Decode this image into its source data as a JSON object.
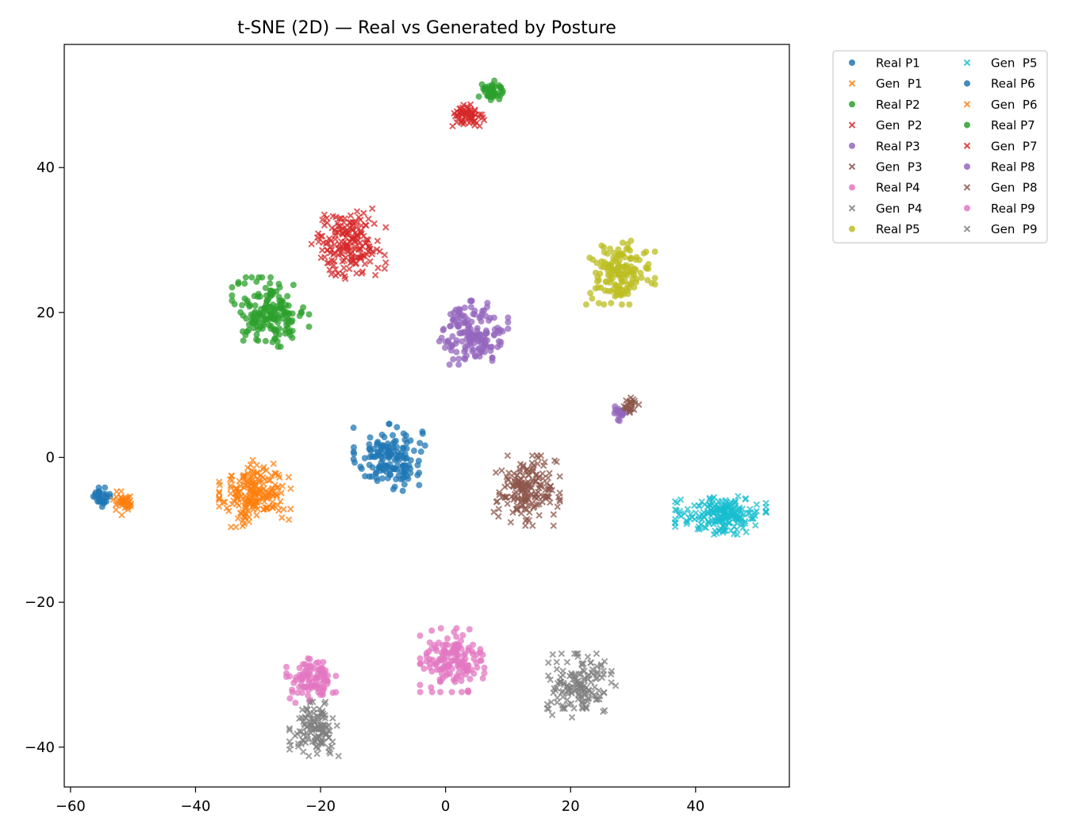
{
  "chart_data": {
    "type": "scatter",
    "title": "t-SNE (2D) — Real vs Generated by Posture",
    "xlabel": "",
    "ylabel": "",
    "xlim": [
      -61,
      55
    ],
    "ylim": [
      -45.5,
      57
    ],
    "xticks": [
      {
        "value": -60,
        "label": "−60"
      },
      {
        "value": -40,
        "label": "−40"
      },
      {
        "value": -20,
        "label": "−20"
      },
      {
        "value": 0,
        "label": "0"
      },
      {
        "value": 20,
        "label": "20"
      },
      {
        "value": 40,
        "label": "40"
      }
    ],
    "yticks": [
      {
        "value": -40,
        "label": "−40"
      },
      {
        "value": -20,
        "label": "−20"
      },
      {
        "value": 0,
        "label": "0"
      },
      {
        "value": 20,
        "label": "20"
      },
      {
        "value": 40,
        "label": "40"
      }
    ],
    "grid": false,
    "legend_position": "outside-top-right",
    "legend_columns": 2,
    "series": [
      {
        "name": "Real P1",
        "marker": "circle",
        "color": "#1f77b4",
        "center": [
          -9,
          0
        ],
        "spread": [
          2.6,
          2.1
        ],
        "n": 150
      },
      {
        "name": "Gen  P1",
        "marker": "x",
        "color": "#ff7f0e",
        "center": [
          -30.5,
          -5
        ],
        "spread": [
          2.6,
          2.1
        ],
        "n": 200
      },
      {
        "name": "Real P2",
        "marker": "circle",
        "color": "#2ca02c",
        "center": [
          -28,
          20
        ],
        "spread": [
          2.8,
          2.2
        ],
        "n": 170
      },
      {
        "name": "Gen  P2",
        "marker": "x",
        "color": "#d62728",
        "center": [
          -15.5,
          29.5
        ],
        "spread": [
          2.7,
          2.2
        ],
        "n": 180
      },
      {
        "name": "Real P3",
        "marker": "circle",
        "color": "#9467bd",
        "center": [
          4.5,
          17.2
        ],
        "spread": [
          2.5,
          2.0
        ],
        "n": 160
      },
      {
        "name": "Gen  P3",
        "marker": "x",
        "color": "#8c564b",
        "center": [
          13,
          -4.6
        ],
        "spread": [
          2.4,
          2.2
        ],
        "n": 180
      },
      {
        "name": "Real P4",
        "marker": "circle",
        "color": "#e377c2",
        "center": [
          1.2,
          -28
        ],
        "spread": [
          2.4,
          2.0
        ],
        "n": 150
      },
      {
        "name": "Gen  P4",
        "marker": "x",
        "color": "#7f7f7f",
        "center": [
          21.5,
          -31.5
        ],
        "spread": [
          2.6,
          2.0
        ],
        "n": 150
      },
      {
        "name": "Real P5",
        "marker": "circle",
        "color": "#bcbd22",
        "center": [
          28,
          25.5
        ],
        "spread": [
          2.5,
          2.0
        ],
        "n": 150
      },
      {
        "name": "Gen  P5",
        "marker": "x",
        "color": "#17becf",
        "center": [
          44,
          -8
        ],
        "spread": [
          3.3,
          1.2
        ],
        "n": 200
      },
      {
        "name": "Real P6",
        "marker": "circle",
        "color": "#1f77b4",
        "center": [
          -55,
          -5.5
        ],
        "spread": [
          0.8,
          0.6
        ],
        "n": 30
      },
      {
        "name": "Gen  P6",
        "marker": "x",
        "color": "#ff7f0e",
        "center": [
          -51.5,
          -6.2
        ],
        "spread": [
          0.9,
          0.8
        ],
        "n": 40
      },
      {
        "name": "Real P7",
        "marker": "circle",
        "color": "#2ca02c",
        "center": [
          7.3,
          50.6
        ],
        "spread": [
          0.9,
          0.8
        ],
        "n": 45
      },
      {
        "name": "Gen  P7",
        "marker": "x",
        "color": "#d62728",
        "center": [
          3.5,
          47
        ],
        "spread": [
          1.2,
          0.8
        ],
        "n": 60
      },
      {
        "name": "Real P8",
        "marker": "circle",
        "color": "#9467bd",
        "center": [
          27.9,
          5.9
        ],
        "spread": [
          0.6,
          0.7
        ],
        "n": 20
      },
      {
        "name": "Gen  P8",
        "marker": "x",
        "color": "#8c564b",
        "center": [
          29.5,
          7.2
        ],
        "spread": [
          0.8,
          0.6
        ],
        "n": 25
      },
      {
        "name": "Real P9",
        "marker": "circle",
        "color": "#e377c2",
        "center": [
          -21.5,
          -30.8
        ],
        "spread": [
          1.8,
          1.4
        ],
        "n": 100
      },
      {
        "name": "Gen  P9",
        "marker": "x",
        "color": "#7f7f7f",
        "center": [
          -21,
          -37.5
        ],
        "spread": [
          1.8,
          1.7
        ],
        "n": 120
      }
    ]
  }
}
